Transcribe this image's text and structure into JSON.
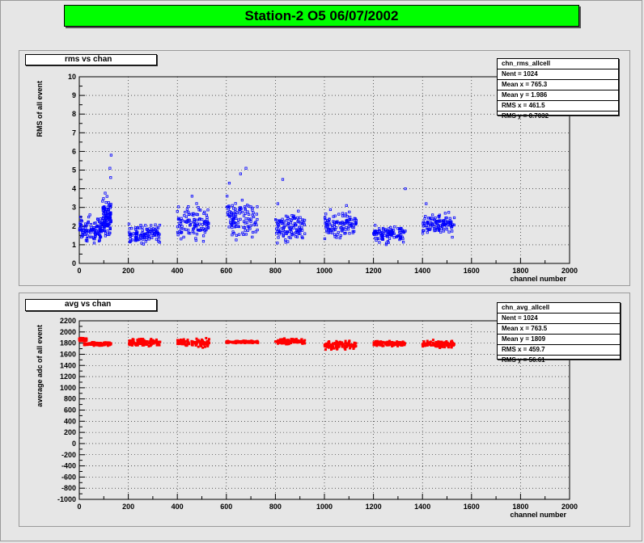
{
  "title": "Station-2 O5 06/07/2002",
  "colors": {
    "title_bg": "#00ff00",
    "frame_bg": "#e6e6e6",
    "series_top": "#0000ff",
    "series_bottom": "#ff0000"
  },
  "chart_data": [
    {
      "type": "scatter",
      "label": "rms vs chan",
      "title": "",
      "xlabel": "channel number",
      "ylabel": "RMS of all event",
      "xlim": [
        0,
        2000
      ],
      "ylim": [
        0,
        10
      ],
      "xticks": [
        0,
        200,
        400,
        600,
        800,
        1000,
        1200,
        1400,
        1600,
        1800,
        2000
      ],
      "yticks": [
        0,
        1,
        2,
        3,
        4,
        5,
        6,
        7,
        8,
        9,
        10
      ],
      "grid": true,
      "color": "#0000ff",
      "stats": {
        "name": "chn_rms_allcell",
        "lines": [
          "Nent = 1024",
          "Mean x = 765.3",
          "Mean y = 1.986",
          "RMS x = 461.5",
          "RMS y = 0.7032"
        ]
      },
      "clusters": [
        {
          "x": [
            0,
            95
          ],
          "ymin": 0.9,
          "ymax": 2.8
        },
        {
          "x": [
            95,
            130
          ],
          "ymin": 1.0,
          "ymax": 4.0
        },
        {
          "x": [
            200,
            330
          ],
          "ymin": 0.9,
          "ymax": 2.2
        },
        {
          "x": [
            400,
            530
          ],
          "ymin": 0.8,
          "ymax": 3.5
        },
        {
          "x": [
            600,
            730
          ],
          "ymin": 1.0,
          "ymax": 3.7
        },
        {
          "x": [
            800,
            920
          ],
          "ymin": 0.9,
          "ymax": 3.0
        },
        {
          "x": [
            1000,
            1130
          ],
          "ymin": 1.0,
          "ymax": 3.0
        },
        {
          "x": [
            1200,
            1330
          ],
          "ymin": 0.9,
          "ymax": 2.2
        },
        {
          "x": [
            1400,
            1530
          ],
          "ymin": 1.3,
          "ymax": 2.9
        }
      ],
      "outliers": [
        {
          "x": 130,
          "y": 5.8
        },
        {
          "x": 125,
          "y": 5.1
        },
        {
          "x": 128,
          "y": 4.6
        },
        {
          "x": 680,
          "y": 5.1
        },
        {
          "x": 658,
          "y": 4.8
        },
        {
          "x": 612,
          "y": 4.3
        },
        {
          "x": 830,
          "y": 4.5
        },
        {
          "x": 1330,
          "y": 4.0
        },
        {
          "x": 460,
          "y": 3.6
        },
        {
          "x": 1415,
          "y": 3.2
        },
        {
          "x": 1090,
          "y": 3.1
        },
        {
          "x": 810,
          "y": 3.2
        }
      ],
      "n_points": 1024
    },
    {
      "type": "scatter",
      "label": "avg vs chan",
      "title": "",
      "xlabel": "channel number",
      "ylabel": "average adc of all event",
      "xlim": [
        0,
        2000
      ],
      "ylim": [
        -1000,
        2200
      ],
      "xticks": [
        0,
        200,
        400,
        600,
        800,
        1000,
        1200,
        1400,
        1600,
        1800,
        2000
      ],
      "yticks": [
        -1000,
        -800,
        -600,
        -400,
        -200,
        0,
        200,
        400,
        600,
        800,
        1000,
        1200,
        1400,
        1600,
        1800,
        2000,
        2200
      ],
      "grid": true,
      "color": "#ff0000",
      "stats": {
        "name": "chn_avg_allcell",
        "lines": [
          "Nent = 1024",
          "Mean x = 763.5",
          "Mean y = 1809",
          "RMS x = 459.7",
          "RMS y = 56.61"
        ]
      },
      "clusters": [
        {
          "x": [
            0,
            30
          ],
          "ymin": 1830,
          "ymax": 1900
        },
        {
          "x": [
            20,
            130
          ],
          "ymin": 1740,
          "ymax": 1830
        },
        {
          "x": [
            200,
            330
          ],
          "ymin": 1720,
          "ymax": 1900
        },
        {
          "x": [
            400,
            530
          ],
          "ymin": 1710,
          "ymax": 1900
        },
        {
          "x": [
            600,
            730
          ],
          "ymin": 1790,
          "ymax": 1850
        },
        {
          "x": [
            800,
            920
          ],
          "ymin": 1770,
          "ymax": 1900
        },
        {
          "x": [
            1000,
            1130
          ],
          "ymin": 1660,
          "ymax": 1870
        },
        {
          "x": [
            1200,
            1330
          ],
          "ymin": 1730,
          "ymax": 1850
        },
        {
          "x": [
            1400,
            1530
          ],
          "ymin": 1700,
          "ymax": 1870
        }
      ],
      "outliers": [],
      "n_points": 1024
    }
  ]
}
